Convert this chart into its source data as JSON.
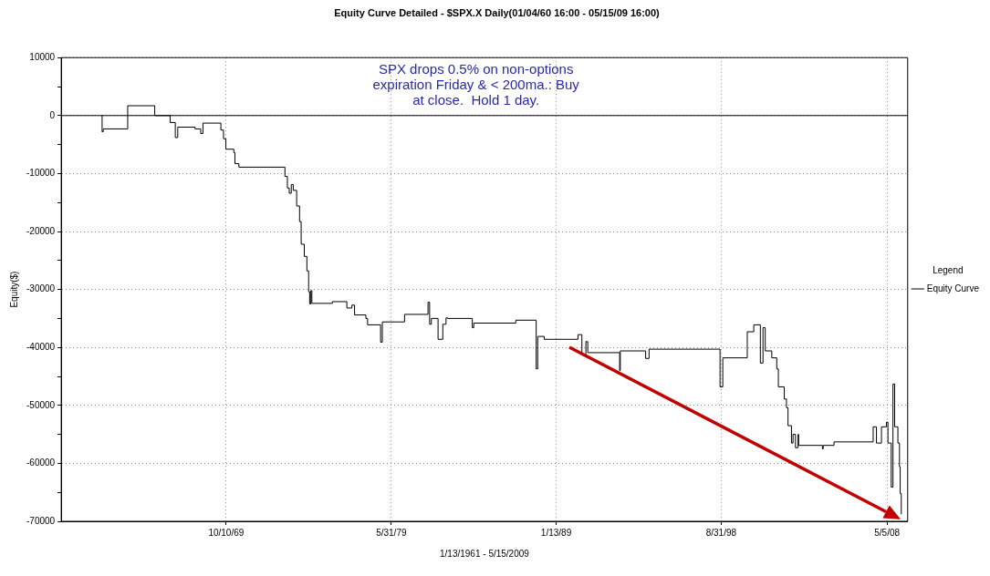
{
  "chart_data": {
    "type": "step",
    "title": "Equity Curve Detailed - $SPX.X Daily(01/04/60 16:00 - 05/15/09 16:00)",
    "xlabel": "1/13/1961 - 5/15/2009",
    "ylabel": "Equity($)",
    "legend_title": "Legend",
    "legend": "right",
    "grid": true,
    "marker": "none",
    "line_style": "solid",
    "annotations": [
      "SPX drops 0.5% on non-options\nexpiration Friday & < 200ma.: Buy\nat close.  Hold 1 day."
    ],
    "ref_lines": [
      {
        "axis": "y",
        "value": 0,
        "color": "#000000"
      }
    ],
    "xlim": [
      "1960-02-25",
      "2009-07-19"
    ],
    "xticks": [
      {
        "value": "1969-10-10",
        "label": "10/10/69"
      },
      {
        "value": "1979-05-31",
        "label": "5/31/79"
      },
      {
        "value": "1989-01-13",
        "label": "1/13/89"
      },
      {
        "value": "1998-08-31",
        "label": "8/31/98"
      },
      {
        "value": "2008-05-05",
        "label": "5/5/08"
      }
    ],
    "ylim": [
      -70000,
      10000
    ],
    "yticks": [
      -70000,
      {
        "value": -65000,
        "label": null
      },
      -60000,
      {
        "value": -55000,
        "label": null
      },
      -50000,
      {
        "value": -45000,
        "label": null
      },
      -40000,
      {
        "value": -35000,
        "label": null
      },
      -30000,
      {
        "value": -25000,
        "label": null
      },
      -20000,
      {
        "value": -15000,
        "label": null
      },
      -10000,
      {
        "value": -5000,
        "label": null
      },
      0,
      {
        "value": 5000,
        "label": null
      },
      10000
    ],
    "series": [
      {
        "name": "Equity Curve",
        "color": "#000000",
        "x": [
          "1962-07-04",
          "1962-07-15",
          "1962-08-07",
          "1964-01-11",
          "1965-08-10",
          "1966-07-04",
          "1966-10-22",
          "1966-12-13",
          "1967-12-16",
          "1968-04-15",
          "1968-06-02",
          "1969-06-20",
          "1969-08-14",
          "1969-10-04",
          "1970-03-23",
          "1970-04-15",
          "1970-07-08",
          "1973-03-16",
          "1973-05-07",
          "1973-06-16",
          "1973-07-29",
          "1973-09-09",
          "1973-11-21",
          "1974-01-22",
          "1974-02-25",
          "1974-05-03",
          "1974-06-27",
          "1974-08-03",
          "1974-08-25",
          "1974-09-20",
          "1974-10-11",
          "1975-12-23",
          "1976-10-26",
          "1977-02-10",
          "1977-04-08",
          "1977-12-05",
          "1978-01-11",
          "1978-10-15",
          "1978-11-21",
          "1980-03-09",
          "1981-07-22",
          "1981-08-25",
          "1981-10-01",
          "1982-02-21",
          "1982-06-02",
          "1982-08-10",
          "1982-09-13",
          "1984-02-21",
          "1984-03-23",
          "1986-09-05",
          "1987-11-14",
          "1987-12-16",
          "1988-05-03",
          "1990-04-22",
          "1990-07-15",
          "1990-10-08",
          "1990-11-17",
          "1992-09-27",
          "1992-10-11",
          "1994-04-04",
          "1994-06-16",
          "1998-08-07",
          "1998-10-04",
          "2000-03-09",
          "2000-07-26",
          "2000-12-13",
          "2001-02-07",
          "2001-03-27",
          "2001-08-14",
          "2001-11-28",
          "2002-01-01",
          "2002-05-07",
          "2002-06-23",
          "2002-07-26",
          "2002-10-08",
          "2002-11-10",
          "2003-01-01",
          "2003-02-25",
          "2003-03-09",
          "2004-07-29",
          "2004-08-14",
          "2005-04-01",
          "2007-07-15",
          "2007-09-23",
          "2008-01-08",
          "2008-04-22",
          "2008-05-25",
          "2008-08-03",
          "2008-09-09",
          "2008-10-15",
          "2008-12-23",
          "2009-01-26",
          "2009-02-10",
          "2009-03-05"
        ],
        "values": [
          0,
          -2800,
          -2300,
          1700,
          0,
          -1200,
          -3800,
          -2000,
          -2300,
          -3100,
          -1300,
          -2500,
          -4000,
          -5800,
          -6400,
          -8300,
          -8900,
          -10500,
          -12500,
          -13400,
          -11900,
          -12900,
          -15600,
          -18300,
          -22200,
          -24300,
          -26800,
          -30400,
          -32500,
          -30200,
          -32400,
          -32100,
          -33200,
          -32700,
          -34400,
          -35000,
          -36100,
          -39100,
          -35600,
          -34300,
          -32200,
          -36000,
          -35000,
          -38600,
          -36000,
          -34900,
          -35000,
          -36600,
          -35800,
          -35300,
          -43700,
          -38100,
          -38600,
          -37800,
          -41200,
          -39000,
          -40900,
          -44000,
          -40600,
          -41900,
          -40300,
          -46800,
          -41800,
          -37300,
          -36100,
          -42700,
          -36600,
          -40600,
          -41800,
          -43700,
          -46800,
          -48900,
          -50400,
          -53500,
          -56500,
          -55000,
          -57300,
          -55000,
          -56900,
          -57500,
          -56900,
          -56300,
          -53700,
          -56500,
          -53700,
          -52900,
          -56500,
          -64100,
          -46300,
          -53700,
          -56500,
          -60600,
          -65200,
          -68800
        ]
      }
    ]
  }
}
